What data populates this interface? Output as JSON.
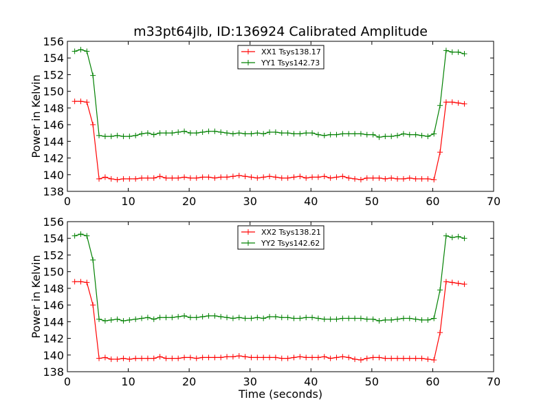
{
  "chart_data": [
    {
      "type": "line",
      "title": "m33pt64jlb, ID:136924 Calibrated Amplitude",
      "xlabel": "",
      "ylabel": "Power in Kelvin",
      "xlim": [
        0,
        70
      ],
      "ylim": [
        138,
        156
      ],
      "xticks": [
        0,
        10,
        20,
        30,
        40,
        50,
        60,
        70
      ],
      "yticks": [
        138,
        140,
        142,
        144,
        146,
        148,
        150,
        152,
        154,
        156
      ],
      "grid": false,
      "legend": "top-center",
      "series": [
        {
          "name": "XX1 Tsys138.17",
          "color": "#ff0000",
          "x": [
            1.2,
            2.2,
            3.2,
            4.2,
            5.2,
            6.2,
            7.2,
            8.2,
            9.2,
            10.2,
            11.2,
            12.2,
            13.2,
            14.2,
            15.2,
            16.2,
            17.2,
            18.2,
            19.2,
            20.2,
            21.2,
            22.2,
            23.2,
            24.2,
            25.2,
            26.2,
            27.2,
            28.2,
            29.2,
            30.2,
            31.2,
            32.2,
            33.2,
            34.2,
            35.2,
            36.2,
            37.2,
            38.2,
            39.2,
            40.2,
            41.2,
            42.2,
            43.2,
            44.2,
            45.2,
            46.2,
            47.2,
            48.2,
            49.2,
            50.2,
            51.2,
            52.2,
            53.2,
            54.2,
            55.2,
            56.2,
            57.2,
            58.2,
            59.2,
            60.2,
            61.2,
            62.2,
            63.2,
            64.2,
            65.2
          ],
          "values": [
            148.8,
            148.8,
            148.7,
            146.0,
            139.5,
            139.7,
            139.5,
            139.4,
            139.5,
            139.5,
            139.5,
            139.6,
            139.6,
            139.6,
            139.8,
            139.6,
            139.6,
            139.6,
            139.7,
            139.6,
            139.6,
            139.7,
            139.7,
            139.6,
            139.7,
            139.7,
            139.8,
            139.9,
            139.8,
            139.7,
            139.6,
            139.7,
            139.8,
            139.7,
            139.6,
            139.6,
            139.7,
            139.8,
            139.6,
            139.7,
            139.7,
            139.8,
            139.6,
            139.7,
            139.8,
            139.6,
            139.5,
            139.4,
            139.6,
            139.6,
            139.6,
            139.5,
            139.6,
            139.5,
            139.5,
            139.6,
            139.5,
            139.5,
            139.5,
            139.4,
            142.7,
            148.7,
            148.7,
            148.6,
            148.5
          ]
        },
        {
          "name": "YY1 Tsys142.73",
          "color": "#008000",
          "x": [
            1.2,
            2.2,
            3.2,
            4.2,
            5.2,
            6.2,
            7.2,
            8.2,
            9.2,
            10.2,
            11.2,
            12.2,
            13.2,
            14.2,
            15.2,
            16.2,
            17.2,
            18.2,
            19.2,
            20.2,
            21.2,
            22.2,
            23.2,
            24.2,
            25.2,
            26.2,
            27.2,
            28.2,
            29.2,
            30.2,
            31.2,
            32.2,
            33.2,
            34.2,
            35.2,
            36.2,
            37.2,
            38.2,
            39.2,
            40.2,
            41.2,
            42.2,
            43.2,
            44.2,
            45.2,
            46.2,
            47.2,
            48.2,
            49.2,
            50.2,
            51.2,
            52.2,
            53.2,
            54.2,
            55.2,
            56.2,
            57.2,
            58.2,
            59.2,
            60.2,
            61.2,
            62.2,
            63.2,
            64.2,
            65.2
          ],
          "values": [
            154.8,
            155.0,
            154.8,
            151.9,
            144.7,
            144.6,
            144.6,
            144.7,
            144.6,
            144.6,
            144.7,
            144.9,
            145.0,
            144.8,
            145.0,
            145.0,
            145.0,
            145.1,
            145.2,
            145.0,
            145.0,
            145.1,
            145.2,
            145.2,
            145.1,
            145.0,
            144.9,
            145.0,
            144.9,
            144.9,
            145.0,
            144.9,
            145.1,
            145.1,
            145.0,
            145.0,
            144.9,
            144.9,
            145.0,
            145.0,
            144.8,
            144.7,
            144.8,
            144.8,
            144.9,
            144.9,
            144.9,
            144.9,
            144.8,
            144.8,
            144.5,
            144.6,
            144.6,
            144.7,
            144.9,
            144.8,
            144.8,
            144.7,
            144.6,
            144.9,
            148.3,
            154.9,
            154.7,
            154.7,
            154.5
          ]
        }
      ]
    },
    {
      "type": "line",
      "title": "",
      "xlabel": "Time (seconds)",
      "ylabel": "Power in Kelvin",
      "xlim": [
        0,
        70
      ],
      "ylim": [
        138,
        156
      ],
      "xticks": [
        0,
        10,
        20,
        30,
        40,
        50,
        60,
        70
      ],
      "yticks": [
        138,
        140,
        142,
        144,
        146,
        148,
        150,
        152,
        154,
        156
      ],
      "grid": false,
      "legend": "top-center",
      "series": [
        {
          "name": "XX2 Tsys138.21",
          "color": "#ff0000",
          "x": [
            1.2,
            2.2,
            3.2,
            4.2,
            5.2,
            6.2,
            7.2,
            8.2,
            9.2,
            10.2,
            11.2,
            12.2,
            13.2,
            14.2,
            15.2,
            16.2,
            17.2,
            18.2,
            19.2,
            20.2,
            21.2,
            22.2,
            23.2,
            24.2,
            25.2,
            26.2,
            27.2,
            28.2,
            29.2,
            30.2,
            31.2,
            32.2,
            33.2,
            34.2,
            35.2,
            36.2,
            37.2,
            38.2,
            39.2,
            40.2,
            41.2,
            42.2,
            43.2,
            44.2,
            45.2,
            46.2,
            47.2,
            48.2,
            49.2,
            50.2,
            51.2,
            52.2,
            53.2,
            54.2,
            55.2,
            56.2,
            57.2,
            58.2,
            59.2,
            60.2,
            61.2,
            62.2,
            63.2,
            64.2,
            65.2
          ],
          "values": [
            148.8,
            148.8,
            148.7,
            146.0,
            139.6,
            139.7,
            139.5,
            139.5,
            139.6,
            139.5,
            139.6,
            139.6,
            139.6,
            139.6,
            139.8,
            139.6,
            139.6,
            139.6,
            139.7,
            139.7,
            139.6,
            139.7,
            139.7,
            139.7,
            139.7,
            139.8,
            139.8,
            139.9,
            139.8,
            139.7,
            139.7,
            139.7,
            139.7,
            139.7,
            139.6,
            139.6,
            139.7,
            139.8,
            139.7,
            139.7,
            139.7,
            139.8,
            139.6,
            139.7,
            139.8,
            139.7,
            139.5,
            139.4,
            139.6,
            139.7,
            139.7,
            139.6,
            139.6,
            139.6,
            139.6,
            139.6,
            139.6,
            139.6,
            139.5,
            139.4,
            142.7,
            148.8,
            148.7,
            148.6,
            148.5
          ]
        },
        {
          "name": "YY2 Tsys142.62",
          "color": "#008000",
          "x": [
            1.2,
            2.2,
            3.2,
            4.2,
            5.2,
            6.2,
            7.2,
            8.2,
            9.2,
            10.2,
            11.2,
            12.2,
            13.2,
            14.2,
            15.2,
            16.2,
            17.2,
            18.2,
            19.2,
            20.2,
            21.2,
            22.2,
            23.2,
            24.2,
            25.2,
            26.2,
            27.2,
            28.2,
            29.2,
            30.2,
            31.2,
            32.2,
            33.2,
            34.2,
            35.2,
            36.2,
            37.2,
            38.2,
            39.2,
            40.2,
            41.2,
            42.2,
            43.2,
            44.2,
            45.2,
            46.2,
            47.2,
            48.2,
            49.2,
            50.2,
            51.2,
            52.2,
            53.2,
            54.2,
            55.2,
            56.2,
            57.2,
            58.2,
            59.2,
            60.2,
            61.2,
            62.2,
            63.2,
            64.2,
            65.2
          ],
          "values": [
            154.3,
            154.5,
            154.3,
            151.4,
            144.3,
            144.1,
            144.2,
            144.3,
            144.1,
            144.2,
            144.3,
            144.4,
            144.5,
            144.3,
            144.5,
            144.5,
            144.5,
            144.6,
            144.7,
            144.5,
            144.5,
            144.6,
            144.7,
            144.7,
            144.6,
            144.5,
            144.4,
            144.5,
            144.4,
            144.4,
            144.5,
            144.4,
            144.6,
            144.6,
            144.5,
            144.5,
            144.4,
            144.4,
            144.5,
            144.5,
            144.4,
            144.3,
            144.3,
            144.3,
            144.4,
            144.4,
            144.4,
            144.4,
            144.3,
            144.3,
            144.1,
            144.2,
            144.2,
            144.3,
            144.4,
            144.4,
            144.3,
            144.2,
            144.2,
            144.4,
            147.8,
            154.3,
            154.1,
            154.2,
            154.0
          ]
        }
      ]
    }
  ]
}
